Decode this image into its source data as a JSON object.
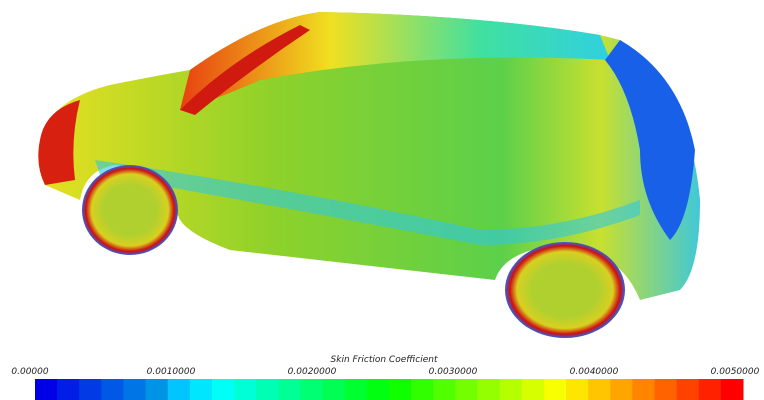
{
  "colorbar": {
    "title": "Skin Friction Coefficient",
    "range": [
      0,
      0.005
    ],
    "ticks": [
      {
        "value": 0,
        "label": "0.00000"
      },
      {
        "value": 0.001,
        "label": "0.0010000"
      },
      {
        "value": 0.002,
        "label": "0.0020000"
      },
      {
        "value": 0.003,
        "label": "0.0030000"
      },
      {
        "value": 0.004,
        "label": "0.0040000"
      },
      {
        "value": 0.005,
        "label": "0.0050000"
      }
    ]
  }
}
